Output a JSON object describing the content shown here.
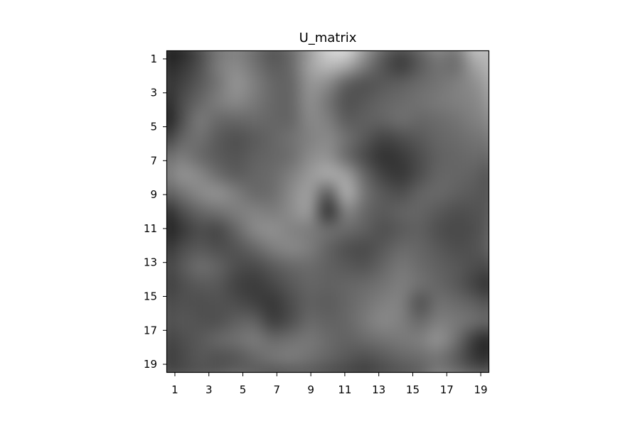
{
  "chart_data": {
    "type": "heatmap",
    "title": "U_matrix",
    "xlabel": "",
    "ylabel": "",
    "colormap": "gray",
    "x_range": [
      1,
      19
    ],
    "y_range": [
      1,
      19
    ],
    "x_ticks": [
      "1",
      "3",
      "5",
      "7",
      "9",
      "11",
      "13",
      "15",
      "17",
      "19"
    ],
    "y_ticks": [
      "1",
      "3",
      "5",
      "7",
      "9",
      "11",
      "13",
      "15",
      "17",
      "19"
    ],
    "values": [
      [
        0.1,
        0.12,
        0.28,
        0.45,
        0.5,
        0.42,
        0.3,
        0.4,
        0.6,
        0.85,
        0.9,
        0.62,
        0.4,
        0.3,
        0.4,
        0.55,
        0.45,
        0.8,
        0.7
      ],
      [
        0.15,
        0.2,
        0.3,
        0.5,
        0.55,
        0.45,
        0.35,
        0.4,
        0.65,
        0.75,
        0.7,
        0.5,
        0.32,
        0.2,
        0.35,
        0.45,
        0.4,
        0.65,
        0.72
      ],
      [
        0.2,
        0.25,
        0.35,
        0.45,
        0.6,
        0.5,
        0.4,
        0.38,
        0.6,
        0.55,
        0.35,
        0.3,
        0.35,
        0.38,
        0.42,
        0.45,
        0.5,
        0.55,
        0.68
      ],
      [
        0.12,
        0.3,
        0.4,
        0.5,
        0.55,
        0.48,
        0.4,
        0.38,
        0.58,
        0.45,
        0.3,
        0.35,
        0.4,
        0.42,
        0.45,
        0.48,
        0.5,
        0.52,
        0.62
      ],
      [
        0.05,
        0.3,
        0.5,
        0.4,
        0.4,
        0.42,
        0.4,
        0.38,
        0.55,
        0.5,
        0.35,
        0.38,
        0.4,
        0.45,
        0.4,
        0.42,
        0.45,
        0.5,
        0.55
      ],
      [
        0.2,
        0.4,
        0.45,
        0.35,
        0.3,
        0.35,
        0.4,
        0.45,
        0.5,
        0.55,
        0.45,
        0.35,
        0.25,
        0.3,
        0.35,
        0.4,
        0.42,
        0.45,
        0.48
      ],
      [
        0.4,
        0.5,
        0.4,
        0.35,
        0.32,
        0.38,
        0.4,
        0.42,
        0.55,
        0.58,
        0.4,
        0.28,
        0.18,
        0.22,
        0.3,
        0.38,
        0.4,
        0.42,
        0.4
      ],
      [
        0.45,
        0.6,
        0.55,
        0.42,
        0.35,
        0.4,
        0.42,
        0.5,
        0.6,
        0.7,
        0.65,
        0.4,
        0.25,
        0.2,
        0.3,
        0.4,
        0.4,
        0.38,
        0.3
      ],
      [
        0.35,
        0.45,
        0.55,
        0.6,
        0.5,
        0.4,
        0.42,
        0.55,
        0.65,
        0.3,
        0.75,
        0.45,
        0.35,
        0.3,
        0.4,
        0.42,
        0.38,
        0.35,
        0.32
      ],
      [
        0.12,
        0.3,
        0.4,
        0.45,
        0.5,
        0.52,
        0.48,
        0.55,
        0.65,
        0.1,
        0.55,
        0.4,
        0.35,
        0.4,
        0.4,
        0.35,
        0.3,
        0.32,
        0.35
      ],
      [
        0.1,
        0.2,
        0.3,
        0.25,
        0.4,
        0.55,
        0.58,
        0.5,
        0.48,
        0.45,
        0.42,
        0.38,
        0.3,
        0.35,
        0.38,
        0.3,
        0.28,
        0.3,
        0.38
      ],
      [
        0.18,
        0.3,
        0.35,
        0.3,
        0.32,
        0.4,
        0.5,
        0.55,
        0.5,
        0.38,
        0.3,
        0.28,
        0.35,
        0.42,
        0.4,
        0.35,
        0.3,
        0.32,
        0.4
      ],
      [
        0.25,
        0.35,
        0.45,
        0.4,
        0.3,
        0.28,
        0.35,
        0.4,
        0.42,
        0.38,
        0.35,
        0.32,
        0.4,
        0.48,
        0.42,
        0.38,
        0.35,
        0.3,
        0.28
      ],
      [
        0.22,
        0.3,
        0.35,
        0.35,
        0.25,
        0.22,
        0.28,
        0.35,
        0.4,
        0.38,
        0.4,
        0.42,
        0.45,
        0.5,
        0.45,
        0.4,
        0.35,
        0.25,
        0.15
      ],
      [
        0.28,
        0.32,
        0.3,
        0.32,
        0.3,
        0.25,
        0.2,
        0.3,
        0.38,
        0.35,
        0.4,
        0.45,
        0.5,
        0.52,
        0.28,
        0.45,
        0.42,
        0.38,
        0.3
      ],
      [
        0.3,
        0.35,
        0.32,
        0.3,
        0.38,
        0.4,
        0.22,
        0.3,
        0.42,
        0.38,
        0.4,
        0.48,
        0.55,
        0.5,
        0.4,
        0.5,
        0.48,
        0.45,
        0.4
      ],
      [
        0.25,
        0.3,
        0.35,
        0.42,
        0.45,
        0.5,
        0.42,
        0.45,
        0.48,
        0.42,
        0.38,
        0.42,
        0.45,
        0.48,
        0.5,
        0.6,
        0.45,
        0.2,
        0.1
      ],
      [
        0.22,
        0.28,
        0.35,
        0.3,
        0.32,
        0.4,
        0.48,
        0.5,
        0.45,
        0.4,
        0.35,
        0.3,
        0.35,
        0.4,
        0.42,
        0.45,
        0.35,
        0.2,
        0.15
      ],
      [
        0.28,
        0.3,
        0.32,
        0.35,
        0.4,
        0.35,
        0.28,
        0.3,
        0.32,
        0.28,
        0.25,
        0.22,
        0.28,
        0.3,
        0.35,
        0.5,
        0.45,
        0.4,
        0.38
      ]
    ]
  },
  "colors": {
    "axis": "#000000",
    "background": "#ffffff"
  }
}
